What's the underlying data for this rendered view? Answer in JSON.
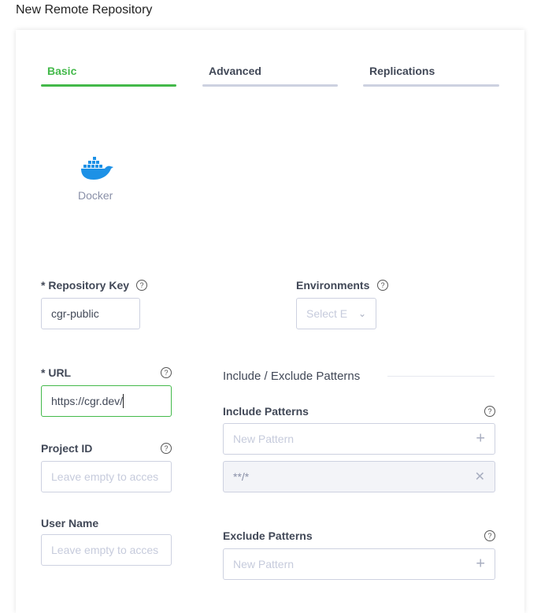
{
  "page_title": "New Remote Repository",
  "tabs": [
    {
      "label": "Basic",
      "active": true
    },
    {
      "label": "Advanced"
    },
    {
      "label": "Replications"
    }
  ],
  "package_type": {
    "label": "Docker",
    "icon": "docker-whale-icon"
  },
  "fields": {
    "repo_key": {
      "label": "* Repository Key",
      "value": "cgr-public"
    },
    "environments": {
      "label": "Environments",
      "placeholder": "Select E"
    },
    "url": {
      "label": "* URL",
      "value": "https://cgr.dev/"
    },
    "project_id": {
      "label": "Project ID",
      "placeholder": "Leave empty to acces"
    },
    "user_name": {
      "label": "User Name",
      "placeholder": "Leave empty to acces"
    }
  },
  "patterns": {
    "heading": "Include / Exclude Patterns",
    "include": {
      "label": "Include Patterns",
      "placeholder": "New Pattern",
      "items": [
        "**/*"
      ]
    },
    "exclude": {
      "label": "Exclude Patterns",
      "placeholder": "New Pattern"
    }
  },
  "colors": {
    "accent": "#43b94a",
    "docker": "#1d91e6"
  }
}
